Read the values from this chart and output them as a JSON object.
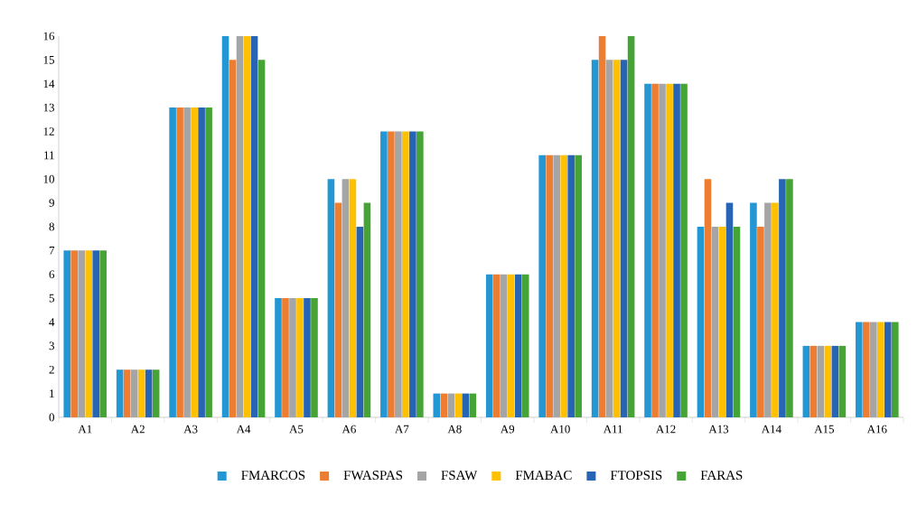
{
  "chart_data": {
    "type": "bar",
    "categories": [
      "A1",
      "A2",
      "A3",
      "A4",
      "A5",
      "A6",
      "A7",
      "A8",
      "A9",
      "A10",
      "A11",
      "A12",
      "A13",
      "A14",
      "A15",
      "A16"
    ],
    "series": [
      {
        "name": "FMARCOS",
        "color": "#2396d4",
        "values": [
          7,
          2,
          13,
          16,
          5,
          10,
          12,
          1,
          6,
          11,
          15,
          14,
          8,
          9,
          3,
          4
        ]
      },
      {
        "name": "FWASPAS",
        "color": "#ed7d31",
        "values": [
          7,
          2,
          13,
          15,
          5,
          9,
          12,
          1,
          6,
          11,
          16,
          14,
          10,
          8,
          3,
          4
        ]
      },
      {
        "name": "FSAW",
        "color": "#a5a5a5",
        "values": [
          7,
          2,
          13,
          16,
          5,
          10,
          12,
          1,
          6,
          11,
          15,
          14,
          8,
          9,
          3,
          4
        ]
      },
      {
        "name": "FMABAC",
        "color": "#ffc000",
        "values": [
          7,
          2,
          13,
          16,
          5,
          10,
          12,
          1,
          6,
          11,
          15,
          14,
          8,
          9,
          3,
          4
        ]
      },
      {
        "name": "FTOPSIS",
        "color": "#2864b4",
        "values": [
          7,
          2,
          13,
          16,
          5,
          8,
          12,
          1,
          6,
          11,
          15,
          14,
          9,
          10,
          3,
          4
        ]
      },
      {
        "name": "FARAS",
        "color": "#46a335",
        "values": [
          7,
          2,
          13,
          15,
          5,
          9,
          12,
          1,
          6,
          11,
          16,
          14,
          8,
          10,
          3,
          4
        ]
      }
    ],
    "ylim": [
      0,
      16
    ],
    "yticks": [
      0,
      1,
      2,
      3,
      4,
      5,
      6,
      7,
      8,
      9,
      10,
      11,
      12,
      13,
      14,
      15,
      16
    ],
    "grid": false,
    "legend": "bottom"
  }
}
